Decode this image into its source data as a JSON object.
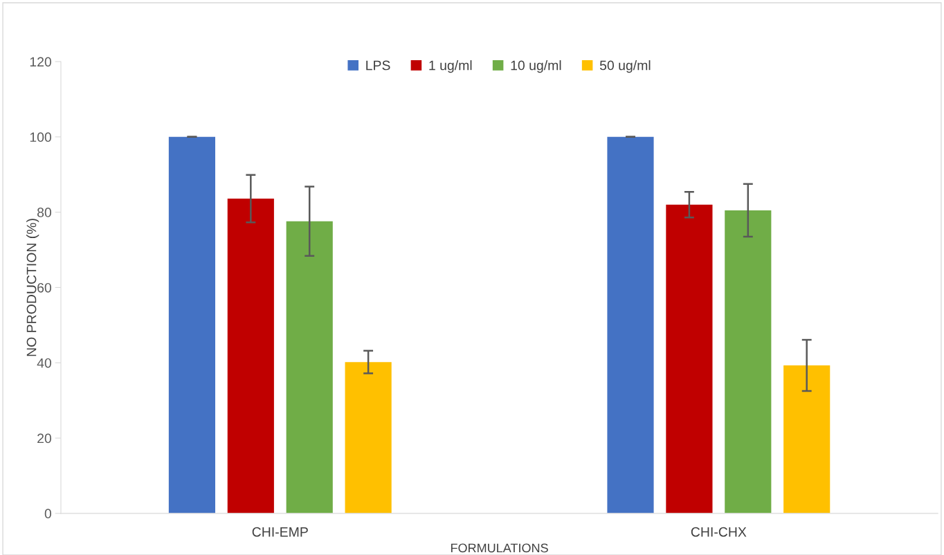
{
  "chart_data": {
    "type": "bar",
    "xlabel": "FORMULATIONS",
    "ylabel": "NO PRODUCTION (%)",
    "categories": [
      "CHI-EMP",
      "CHI-CHX"
    ],
    "series": [
      {
        "name": "LPS",
        "color": "#4472c4",
        "values": [
          100,
          100
        ],
        "errors": [
          0,
          0
        ]
      },
      {
        "name": "1 ug/ml",
        "color": "#c00000",
        "values": [
          83.6,
          82.0
        ],
        "errors": [
          6.3,
          3.4
        ]
      },
      {
        "name": "10 ug/ml",
        "color": "#70ad47",
        "values": [
          77.6,
          80.5
        ],
        "errors": [
          9.2,
          7
        ]
      },
      {
        "name": "50 ug/ml",
        "color": "#ffc000",
        "values": [
          40.2,
          39.3
        ],
        "errors": [
          3,
          6.8
        ]
      }
    ],
    "ylim": [
      0,
      120
    ],
    "yticks": [
      0,
      20,
      40,
      60,
      80,
      100,
      120
    ],
    "legend": "top",
    "grid": false
  }
}
